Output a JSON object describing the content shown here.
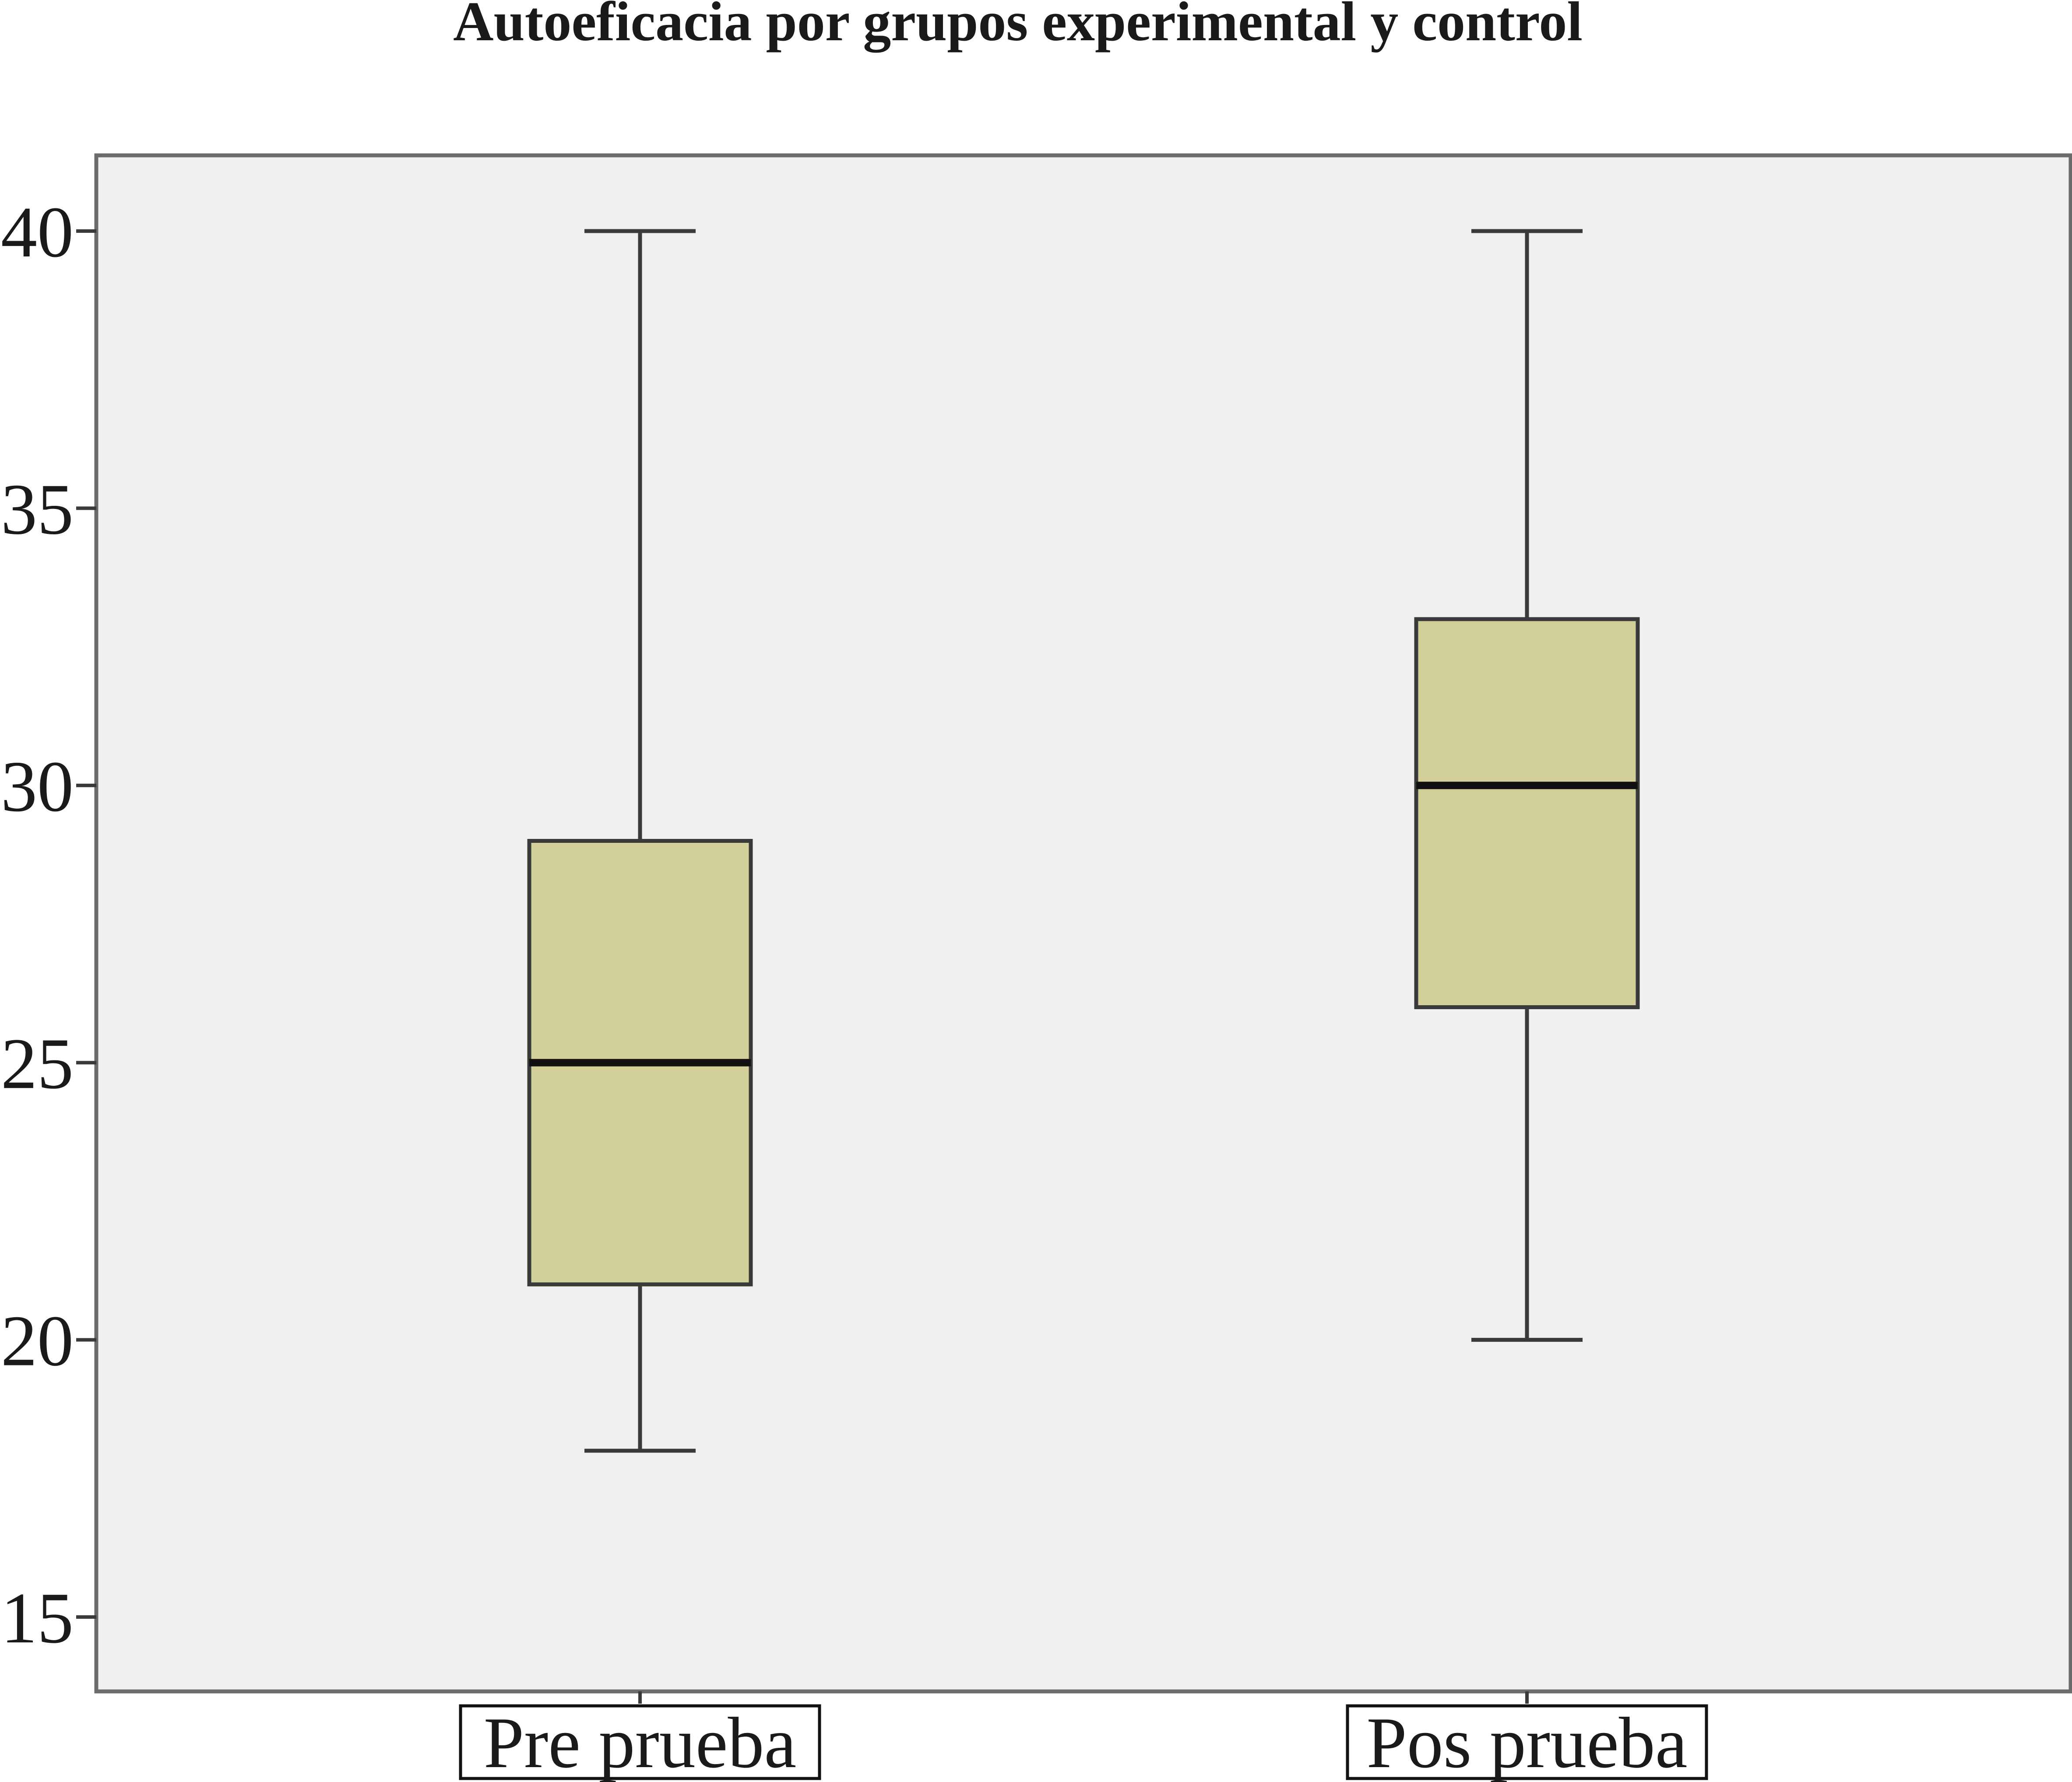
{
  "chart_data": {
    "type": "boxplot",
    "title": "Autoeficacia por grupos experimental y control",
    "xlabel": "",
    "ylabel": "",
    "ylim": [
      13.6,
      41.4
    ],
    "yticks": [
      15,
      20,
      25,
      30,
      35,
      40
    ],
    "grid": false,
    "legend": "none",
    "categories": [
      "Pre prueba",
      "Pos prueba"
    ],
    "boxes": [
      {
        "category": "Pre prueba",
        "min": 18,
        "q1": 21,
        "median": 25,
        "q3": 29,
        "max": 40
      },
      {
        "category": "Pos prueba",
        "min": 20,
        "q1": 26,
        "median": 30,
        "q3": 33,
        "max": 40
      }
    ],
    "colors": {
      "box_fill": "#d3cf99",
      "plot_background": "#f0f0ee",
      "stroke": "#3a3a3a",
      "median": "#111111",
      "frame": "#6b6b6b"
    }
  }
}
